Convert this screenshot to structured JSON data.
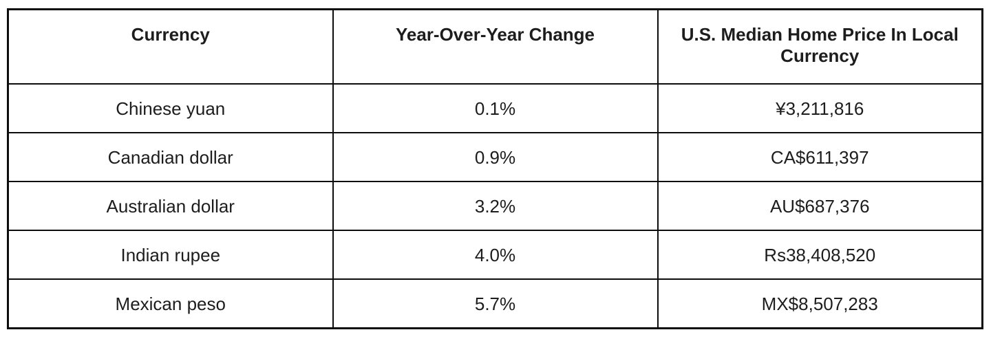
{
  "chart_data": {
    "type": "table",
    "columns": [
      "Currency",
      "Year-Over-Year Change",
      "U.S. Median Home Price In Local Currency"
    ],
    "rows": [
      [
        "Chinese yuan",
        "0.1%",
        "¥3,211,816"
      ],
      [
        "Canadian dollar",
        "0.9%",
        "CA$611,397"
      ],
      [
        "Australian dollar",
        "3.2%",
        "AU$687,376"
      ],
      [
        "Indian rupee",
        "4.0%",
        "Rs38,408,520"
      ],
      [
        "Mexican peso",
        "5.7%",
        "MX$8,507,283"
      ]
    ],
    "layout": {
      "grid": "full-borders",
      "header_style": "bold",
      "cell_alignment": "center",
      "legend": "none"
    }
  },
  "colors": {
    "border": "#0d0d0d",
    "text": "#1d1d1d",
    "background": "#ffffff"
  }
}
